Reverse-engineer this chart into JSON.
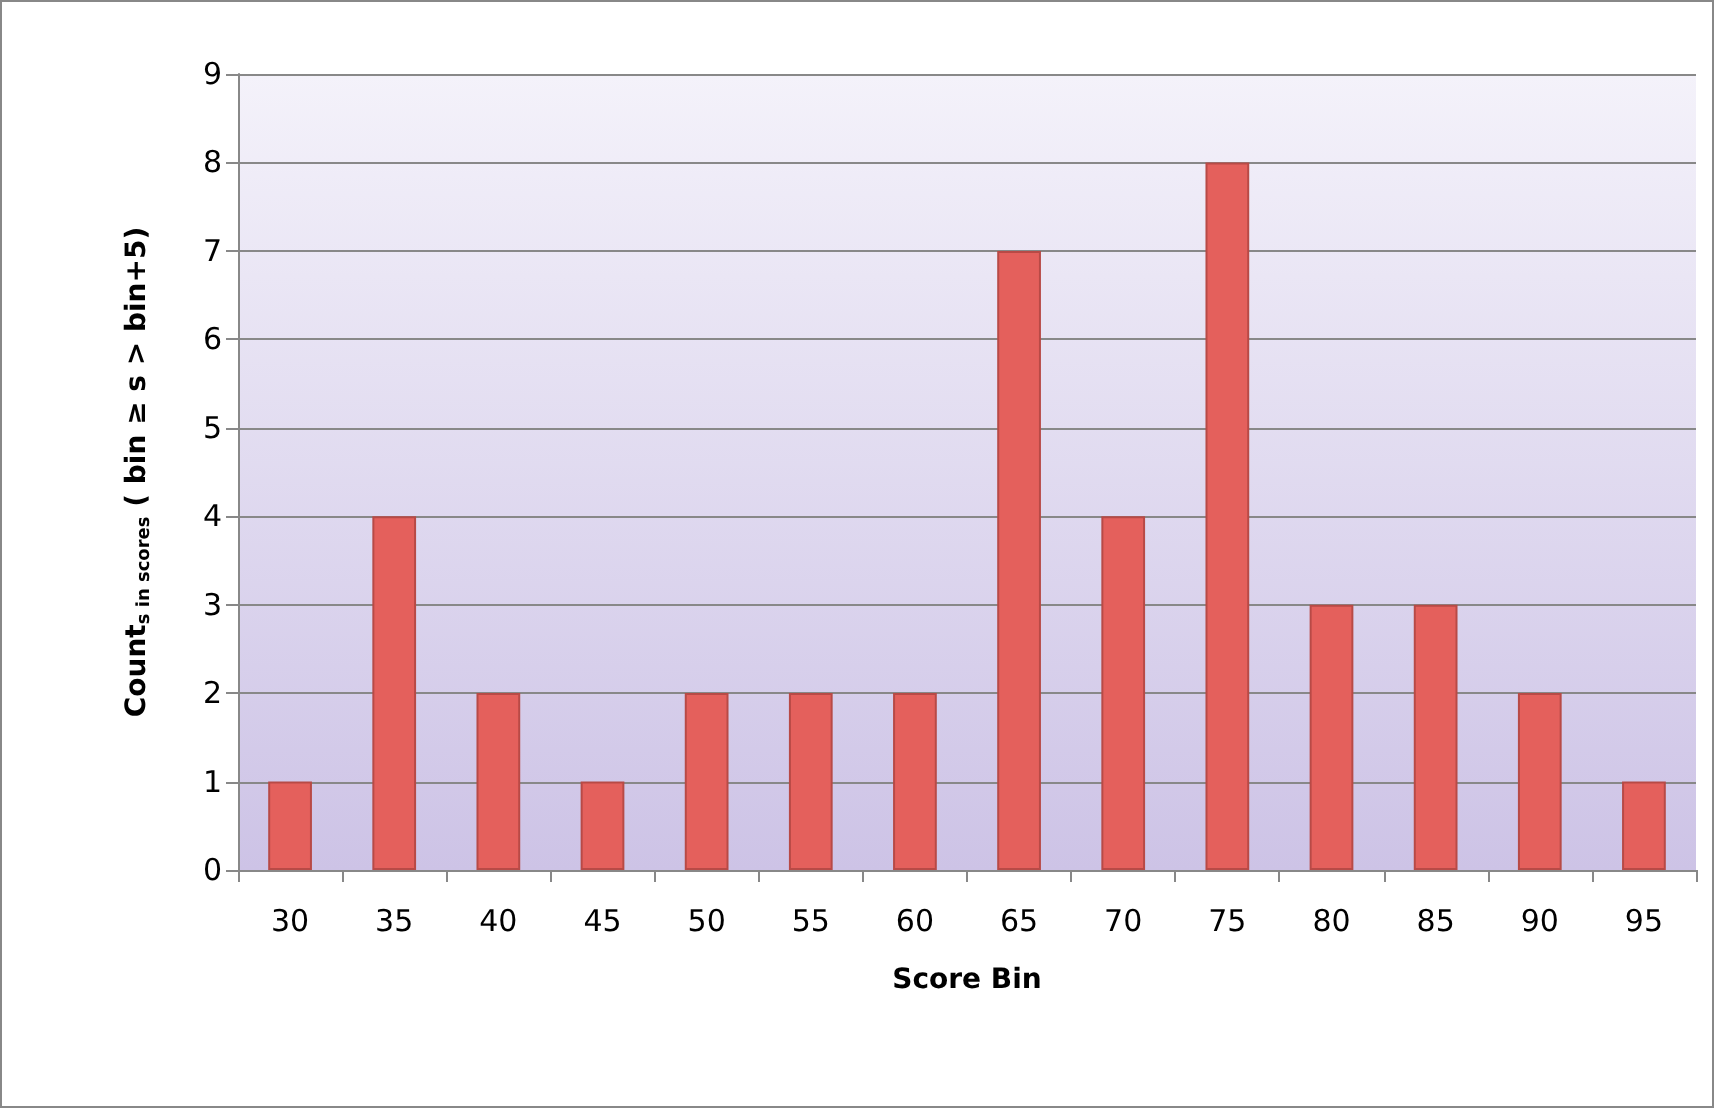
{
  "chart_data": {
    "type": "bar",
    "xlabel": "Score Bin",
    "ylabel": "Count$_{s in scores}$ ( bin ≥ s > bin+5)",
    "categories": [
      "30",
      "35",
      "40",
      "45",
      "50",
      "55",
      "60",
      "65",
      "70",
      "75",
      "80",
      "85",
      "90",
      "95"
    ],
    "values": [
      1,
      4,
      2,
      1,
      2,
      2,
      2,
      7,
      4,
      8,
      3,
      3,
      2,
      1
    ],
    "color": "#e4605c",
    "ylim": [
      0,
      9
    ],
    "yticks": [
      0,
      1,
      2,
      3,
      4,
      5,
      6,
      7,
      8,
      9
    ],
    "grid": "y"
  }
}
